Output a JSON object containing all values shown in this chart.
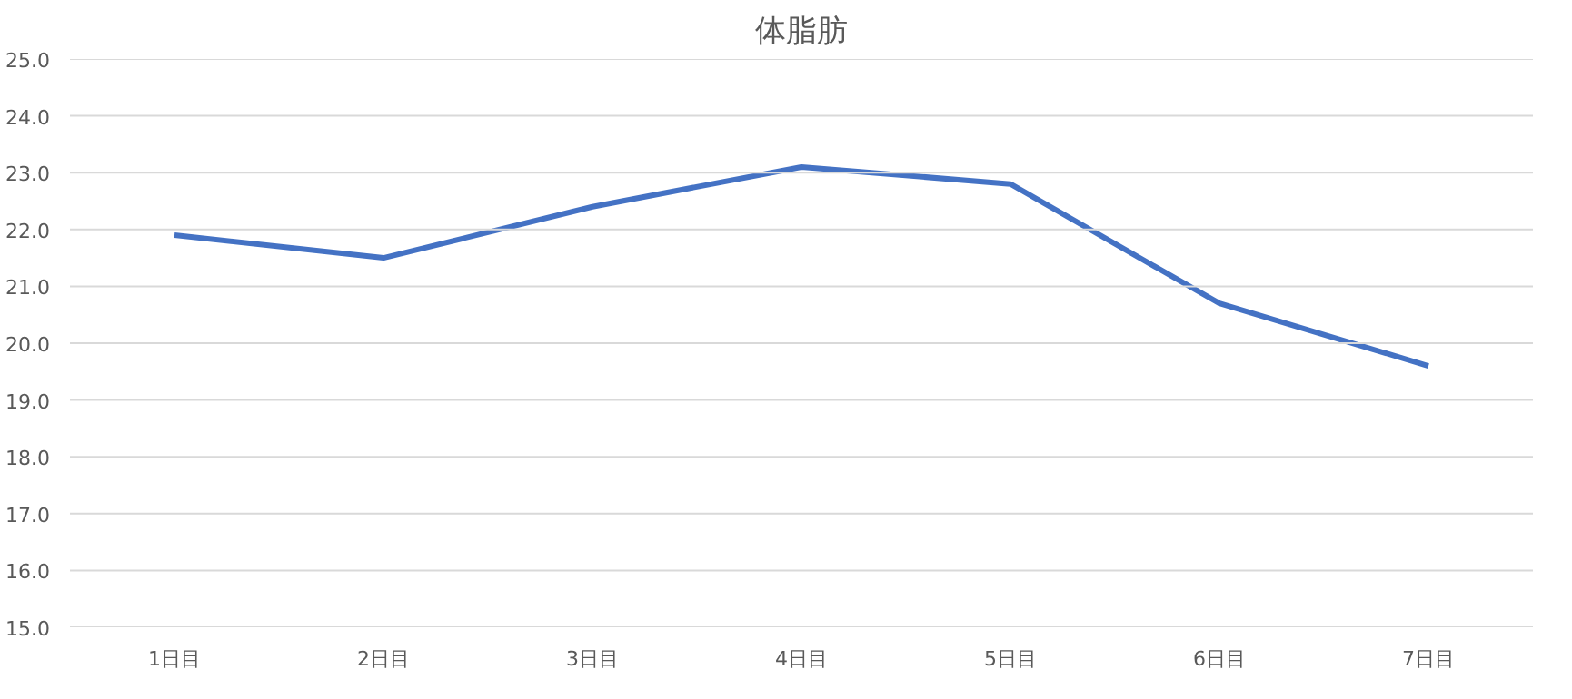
{
  "chart_data": {
    "type": "line",
    "title": "体脂肪",
    "categories": [
      "1日目",
      "2日目",
      "3日目",
      "4日目",
      "5日目",
      "6日目",
      "7日目"
    ],
    "series": [
      {
        "color": "#4472c4",
        "values": [
          21.9,
          21.5,
          22.4,
          23.1,
          22.8,
          20.7,
          19.6
        ]
      }
    ],
    "ylim": [
      15,
      25
    ],
    "yticks": [
      {
        "value": 15,
        "label": "15.0"
      },
      {
        "value": 16,
        "label": "16.0"
      },
      {
        "value": 17,
        "label": "17.0"
      },
      {
        "value": 18,
        "label": "18.0"
      },
      {
        "value": 19,
        "label": "19.0"
      },
      {
        "value": 20,
        "label": "20.0"
      },
      {
        "value": 21,
        "label": "21.0"
      },
      {
        "value": 22,
        "label": "22.0"
      },
      {
        "value": 23,
        "label": "23.0"
      },
      {
        "value": 24,
        "label": "24.0"
      },
      {
        "value": 25,
        "label": "25.0"
      }
    ],
    "grid": "y",
    "marker": "none",
    "line_style": "solid"
  }
}
